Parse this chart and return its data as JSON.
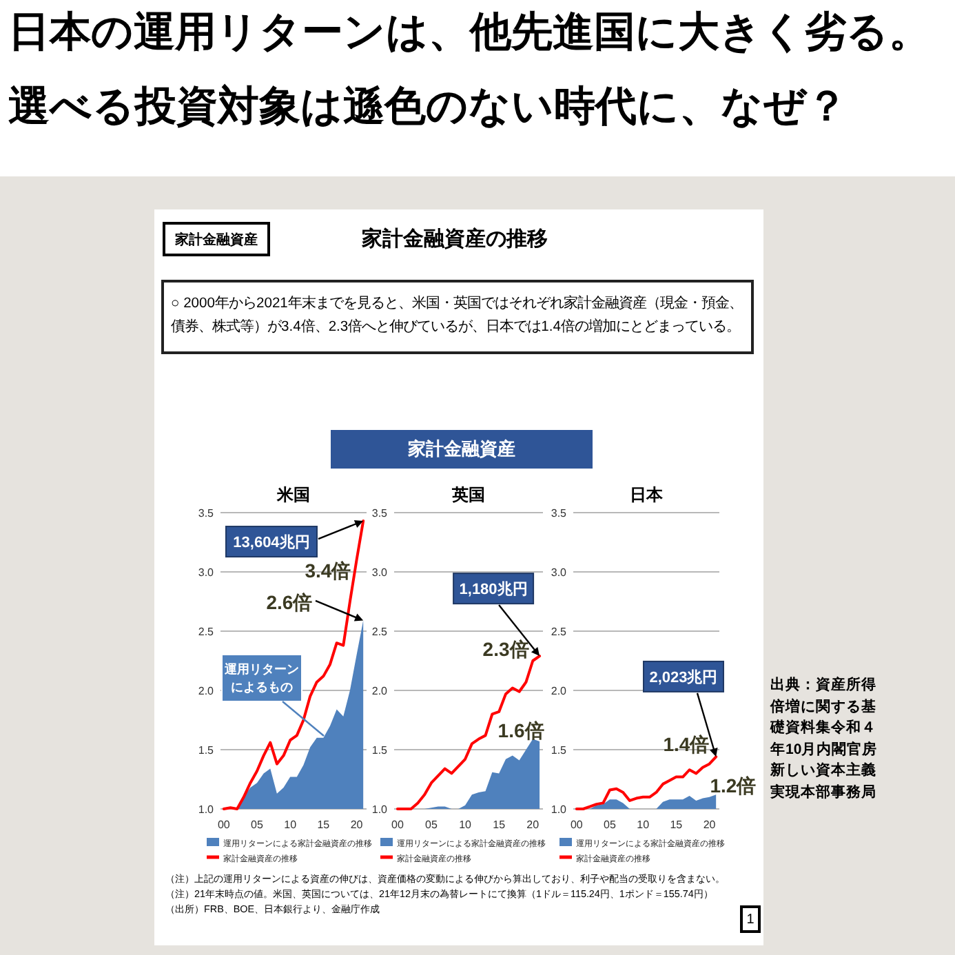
{
  "chart_data": [
    {
      "type": "other",
      "title": "日本の運用リターンは、他先進国に大きく劣る。",
      "subtitle": "選べる投資対象は遜色のない時代に、なぜ？",
      "annotations": [
        "家計金融資産",
        "家計金融資産の推移",
        "○ 2000年から2021年末までを見ると、米国・英国ではそれぞれ家計金融資産（現金・預金、債券、株式等）が3.4倍、2.3倍へと伸びているが、日本では1.4倍の増加にとどまっている。",
        "家計金融資産",
        "（注）上記の運用リターンによる資産の伸びは、資産価格の変動による伸びから算出しており、利子や配当の受取りを含まない。",
        "（注）21年末時点の値。米国、英国については、21年12月末の為替レートにて換算（1ドル＝115.24円、1ポンド＝155.74円）",
        "（出所）FRB、BOE、日本銀行より、金融庁作成",
        "出典：資産所得倍増に関する基礎資料集令和４年10月内閣官房新しい資本主義実現本部事務局",
        "1"
      ]
    },
    {
      "type": "line",
      "title": "米国",
      "x": [
        2000,
        2001,
        2002,
        2003,
        2004,
        2005,
        2006,
        2007,
        2008,
        2009,
        2010,
        2011,
        2012,
        2013,
        2014,
        2015,
        2016,
        2017,
        2018,
        2019,
        2020,
        2021
      ],
      "xlim": [
        1999.5,
        2021.5
      ],
      "xticks": [
        {
          "value": 2000,
          "label": "00"
        },
        {
          "value": 2005,
          "label": "05"
        },
        {
          "value": 2010,
          "label": "10"
        },
        {
          "value": 2015,
          "label": "15"
        },
        {
          "value": 2020,
          "label": "20"
        }
      ],
      "ylim": [
        1,
        3.5
      ],
      "yticks": [
        {
          "value": 1,
          "label": "1.0"
        },
        1.5,
        {
          "value": 2,
          "label": "2.0"
        },
        2.5,
        {
          "value": 3,
          "label": "3.0"
        },
        3.5
      ],
      "grid": "y",
      "legend": "bottom",
      "series": [
        {
          "name": "運用リターンによる家計金融資産の推移",
          "type": "area",
          "color": "#4f81bd",
          "values": [
            1.0,
            1.0,
            1.0,
            1.1,
            1.18,
            1.22,
            1.3,
            1.34,
            1.13,
            1.18,
            1.27,
            1.27,
            1.37,
            1.52,
            1.6,
            1.6,
            1.7,
            1.84,
            1.78,
            2.0,
            2.3,
            2.59
          ]
        },
        {
          "name": "家計金融資産の推移",
          "type": "line",
          "color": "#ff0000",
          "values": [
            1.0,
            1.01,
            1.0,
            1.1,
            1.22,
            1.32,
            1.45,
            1.56,
            1.38,
            1.45,
            1.58,
            1.62,
            1.75,
            1.95,
            2.07,
            2.12,
            2.22,
            2.4,
            2.38,
            2.75,
            3.1,
            3.43
          ]
        }
      ],
      "annotations": [
        "13,604兆円",
        "3.4倍",
        "2.6倍",
        "運用リターンによるもの"
      ]
    },
    {
      "type": "line",
      "title": "英国",
      "x": [
        2000,
        2001,
        2002,
        2003,
        2004,
        2005,
        2006,
        2007,
        2008,
        2009,
        2010,
        2011,
        2012,
        2013,
        2014,
        2015,
        2016,
        2017,
        2018,
        2019,
        2020,
        2021
      ],
      "xlim": [
        1999.5,
        2021.5
      ],
      "xticks": [
        {
          "value": 2000,
          "label": "00"
        },
        {
          "value": 2005,
          "label": "05"
        },
        {
          "value": 2010,
          "label": "10"
        },
        {
          "value": 2015,
          "label": "15"
        },
        {
          "value": 2020,
          "label": "20"
        }
      ],
      "ylim": [
        1,
        3.5
      ],
      "yticks": [
        {
          "value": 1,
          "label": "1.0"
        },
        1.5,
        {
          "value": 2,
          "label": "2.0"
        },
        2.5,
        {
          "value": 3,
          "label": "3.0"
        },
        3.5
      ],
      "grid": "y",
      "legend": "bottom",
      "series": [
        {
          "name": "運用リターンによる家計金融資産の推移",
          "type": "area",
          "color": "#4f81bd",
          "values": [
            1.0,
            1.0,
            1.0,
            1.0,
            1.0,
            1.01,
            1.02,
            1.02,
            1.0,
            1.0,
            1.03,
            1.12,
            1.14,
            1.15,
            1.31,
            1.3,
            1.42,
            1.45,
            1.41,
            1.5,
            1.59,
            1.57
          ]
        },
        {
          "name": "家計金融資産の推移",
          "type": "line",
          "color": "#ff0000",
          "values": [
            1.0,
            1.0,
            1.0,
            1.05,
            1.12,
            1.22,
            1.28,
            1.34,
            1.3,
            1.36,
            1.42,
            1.55,
            1.59,
            1.62,
            1.8,
            1.82,
            1.97,
            2.02,
            1.99,
            2.07,
            2.25,
            2.29
          ]
        }
      ],
      "annotations": [
        "1,180兆円",
        "2.3倍",
        "1.6倍"
      ]
    },
    {
      "type": "line",
      "title": "日本",
      "x": [
        2000,
        2001,
        2002,
        2003,
        2004,
        2005,
        2006,
        2007,
        2008,
        2009,
        2010,
        2011,
        2012,
        2013,
        2014,
        2015,
        2016,
        2017,
        2018,
        2019,
        2020,
        2021
      ],
      "xlim": [
        1999.5,
        2021.5
      ],
      "xticks": [
        {
          "value": 2000,
          "label": "00"
        },
        {
          "value": 2005,
          "label": "05"
        },
        {
          "value": 2010,
          "label": "10"
        },
        {
          "value": 2015,
          "label": "15"
        },
        {
          "value": 2020,
          "label": "20"
        }
      ],
      "ylim": [
        1,
        3.5
      ],
      "yticks": [
        {
          "value": 1,
          "label": "1.0"
        },
        1.5,
        {
          "value": 2,
          "label": "2.0"
        },
        2.5,
        {
          "value": 3,
          "label": "3.0"
        },
        3.5
      ],
      "grid": "y",
      "legend": "bottom",
      "series": [
        {
          "name": "運用リターンによる家計金融資産の推移",
          "type": "area",
          "color": "#4f81bd",
          "values": [
            1.0,
            1.0,
            1.0,
            1.03,
            1.04,
            1.08,
            1.08,
            1.05,
            1.0,
            1.0,
            1.0,
            1.0,
            1.0,
            1.06,
            1.08,
            1.08,
            1.08,
            1.11,
            1.07,
            1.09,
            1.1,
            1.12
          ]
        },
        {
          "name": "家計金融資産の推移",
          "type": "line",
          "color": "#ff0000",
          "values": [
            1.0,
            1.0,
            1.02,
            1.04,
            1.05,
            1.16,
            1.17,
            1.14,
            1.07,
            1.09,
            1.1,
            1.1,
            1.14,
            1.21,
            1.24,
            1.27,
            1.27,
            1.33,
            1.3,
            1.35,
            1.38,
            1.44
          ]
        }
      ],
      "annotations": [
        "2,023兆円",
        "1.4倍",
        "1.2倍"
      ]
    }
  ]
}
